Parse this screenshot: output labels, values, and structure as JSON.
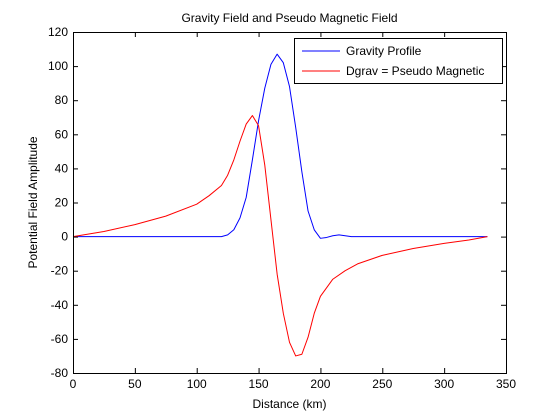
{
  "chart_data": {
    "type": "line",
    "title": "Gravity Field and Pseudo Magnetic Field",
    "xlabel": "Distance (km)",
    "ylabel": "Potential Field Amplitude",
    "xlim": [
      0,
      350
    ],
    "ylim": [
      -80,
      120
    ],
    "xticks": [
      0,
      50,
      100,
      150,
      200,
      250,
      300,
      350
    ],
    "yticks": [
      -80,
      -60,
      -40,
      -20,
      0,
      20,
      40,
      60,
      80,
      100,
      120
    ],
    "legend_position": "top-right",
    "series": [
      {
        "name": "Gravity Profile",
        "color": "#0000ff",
        "x": [
          0,
          120,
          125,
          130,
          135,
          140,
          145,
          150,
          155,
          160,
          165,
          170,
          175,
          180,
          185,
          190,
          195,
          200,
          205,
          210,
          215,
          220,
          225,
          230,
          335
        ],
        "y": [
          0,
          0,
          1,
          4,
          11,
          23,
          45,
          68,
          87,
          101,
          107,
          102,
          88,
          64,
          38,
          15,
          4,
          -1,
          -0.5,
          0.5,
          1,
          0.5,
          0,
          0,
          0
        ]
      },
      {
        "name": "Dgrav = Pseudo Magnetic",
        "color": "#ff0000",
        "x": [
          0,
          25,
          50,
          75,
          100,
          110,
          120,
          125,
          130,
          135,
          140,
          145,
          150,
          155,
          160,
          165,
          170,
          175,
          180,
          185,
          190,
          195,
          200,
          210,
          220,
          230,
          250,
          275,
          300,
          320,
          335
        ],
        "y": [
          0,
          3,
          7,
          12,
          19,
          24,
          30,
          36,
          45,
          56,
          66,
          71,
          65,
          42,
          10,
          -22,
          -45,
          -62,
          -70,
          -69,
          -59,
          -45,
          -35,
          -25,
          -20,
          -16,
          -11,
          -7,
          -4,
          -2,
          0
        ]
      }
    ]
  }
}
